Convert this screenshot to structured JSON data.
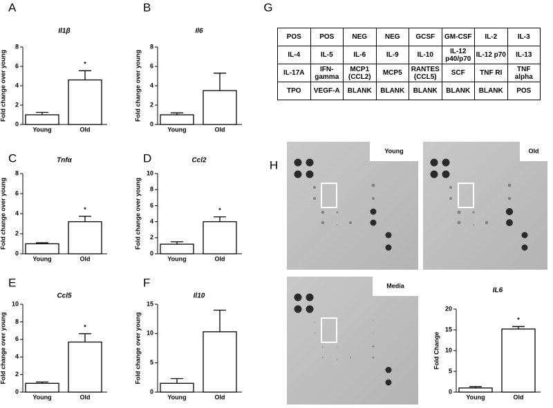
{
  "chart_data": [
    {
      "type": "bar",
      "panel": "A",
      "title": "Il1β",
      "y_label": "Fold change over young",
      "categories": [
        "Young",
        "Old"
      ],
      "values": [
        1.0,
        4.6
      ],
      "errors": [
        0.25,
        0.95
      ],
      "annotation": "*",
      "color": "#ffffff",
      "ylim": [
        0,
        8
      ],
      "yticks": [
        0,
        2,
        4,
        6,
        8
      ]
    },
    {
      "type": "bar",
      "panel": "B",
      "title": "Il6",
      "y_label": "Fold change over young",
      "categories": [
        "Young",
        "Old"
      ],
      "values": [
        1.0,
        3.5
      ],
      "errors": [
        0.2,
        1.8
      ],
      "color": "#ffffff",
      "ylim": [
        0,
        8
      ],
      "yticks": [
        0,
        2,
        4,
        6,
        8
      ]
    },
    {
      "type": "bar",
      "panel": "C",
      "title": "Tnfα",
      "y_label": "Fold change over young",
      "categories": [
        "Young",
        "Old"
      ],
      "values": [
        1.0,
        3.2
      ],
      "errors": [
        0.1,
        0.55
      ],
      "annotation": "*",
      "color": "#ffffff",
      "ylim": [
        0,
        8
      ],
      "yticks": [
        0,
        2,
        4,
        6,
        8
      ]
    },
    {
      "type": "bar",
      "panel": "D",
      "title": "Ccl2",
      "y_label": "Fold change over young",
      "categories": [
        "Young",
        "Old"
      ],
      "values": [
        1.2,
        4.0
      ],
      "errors": [
        0.3,
        0.6
      ],
      "annotation": "*",
      "color": "#ffffff",
      "ylim": [
        0,
        10
      ],
      "yticks": [
        0,
        2,
        4,
        6,
        8,
        10
      ]
    },
    {
      "type": "bar",
      "panel": "E",
      "title": "Ccl5",
      "y_label": "Fold change over young",
      "categories": [
        "Young",
        "Old"
      ],
      "values": [
        1.0,
        5.7
      ],
      "errors": [
        0.15,
        0.95
      ],
      "annotation": "*",
      "color": "#ffffff",
      "ylim": [
        0,
        10
      ],
      "yticks": [
        0,
        2,
        4,
        6,
        8,
        10
      ]
    },
    {
      "type": "bar",
      "panel": "F",
      "title": "Il10",
      "y_label": "Fold change over young",
      "categories": [
        "Young",
        "Old"
      ],
      "values": [
        1.5,
        10.3
      ],
      "errors": [
        0.8,
        3.7
      ],
      "color": "#ffffff",
      "ylim": [
        0,
        15
      ],
      "yticks": [
        0,
        5,
        10,
        15
      ]
    },
    {
      "type": "bar",
      "title": "IL6",
      "y_label": "Fold Change",
      "categories": [
        "Young",
        "Old"
      ],
      "values": [
        1.0,
        15.2
      ],
      "errors": [
        0.3,
        0.6
      ],
      "annotation": "*",
      "color": "#ffffff",
      "ylim": [
        0,
        20
      ],
      "yticks": [
        0,
        5,
        10,
        15,
        20
      ]
    }
  ],
  "table": {
    "panel": "G",
    "rows": [
      [
        "POS",
        "POS",
        "NEG",
        "NEG",
        "GCSF",
        "GM-CSF",
        "IL-2",
        "IL-3"
      ],
      [
        "IL-4",
        "IL-5",
        "IL-6",
        "IL-9",
        "IL-10",
        "IL-12 p40/p70",
        "IL-12 p70",
        "IL-13"
      ],
      [
        "IL-17A",
        "IFN-gamma",
        "MCP1 (CCL2)",
        "MCP5",
        "RANTES (CCL5)",
        "SCF",
        "TNF RI",
        "TNF alpha"
      ],
      [
        "TPO",
        "VEGF-A",
        "BLANK",
        "BLANK",
        "BLANK",
        "BLANK",
        "BLANK",
        "POS"
      ]
    ]
  },
  "blots": {
    "panel": "H",
    "titles": [
      "Young",
      "Old",
      "Media"
    ]
  }
}
